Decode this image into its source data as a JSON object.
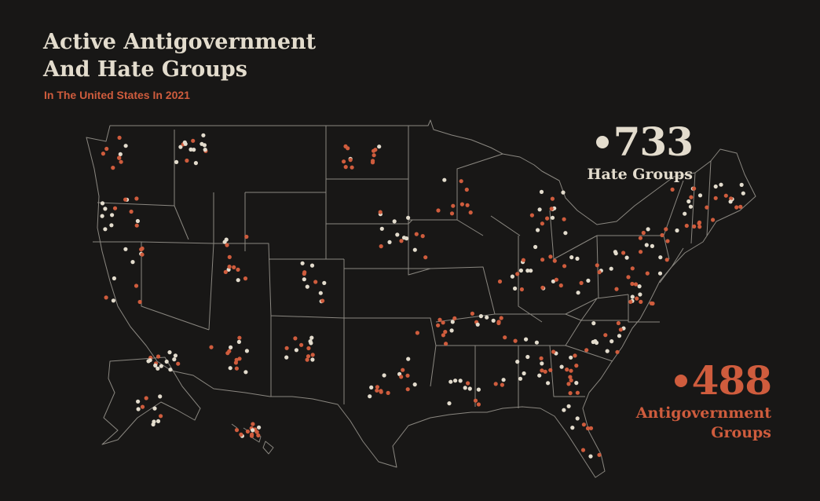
{
  "title_line1": "Active Antigovernment",
  "title_line2": "And Hate Groups",
  "subtitle": "In The United States In 2021",
  "colors": {
    "background": "#181716",
    "hate": "#e3dccd",
    "antigovernment": "#cf5c3d",
    "borders": "#8a8780"
  },
  "legend": {
    "hate": {
      "count": "733",
      "label": "Hate Groups"
    },
    "antigovernment": {
      "count": "488",
      "label_line1": "Antigovernment",
      "label_line2": "Groups"
    }
  }
}
